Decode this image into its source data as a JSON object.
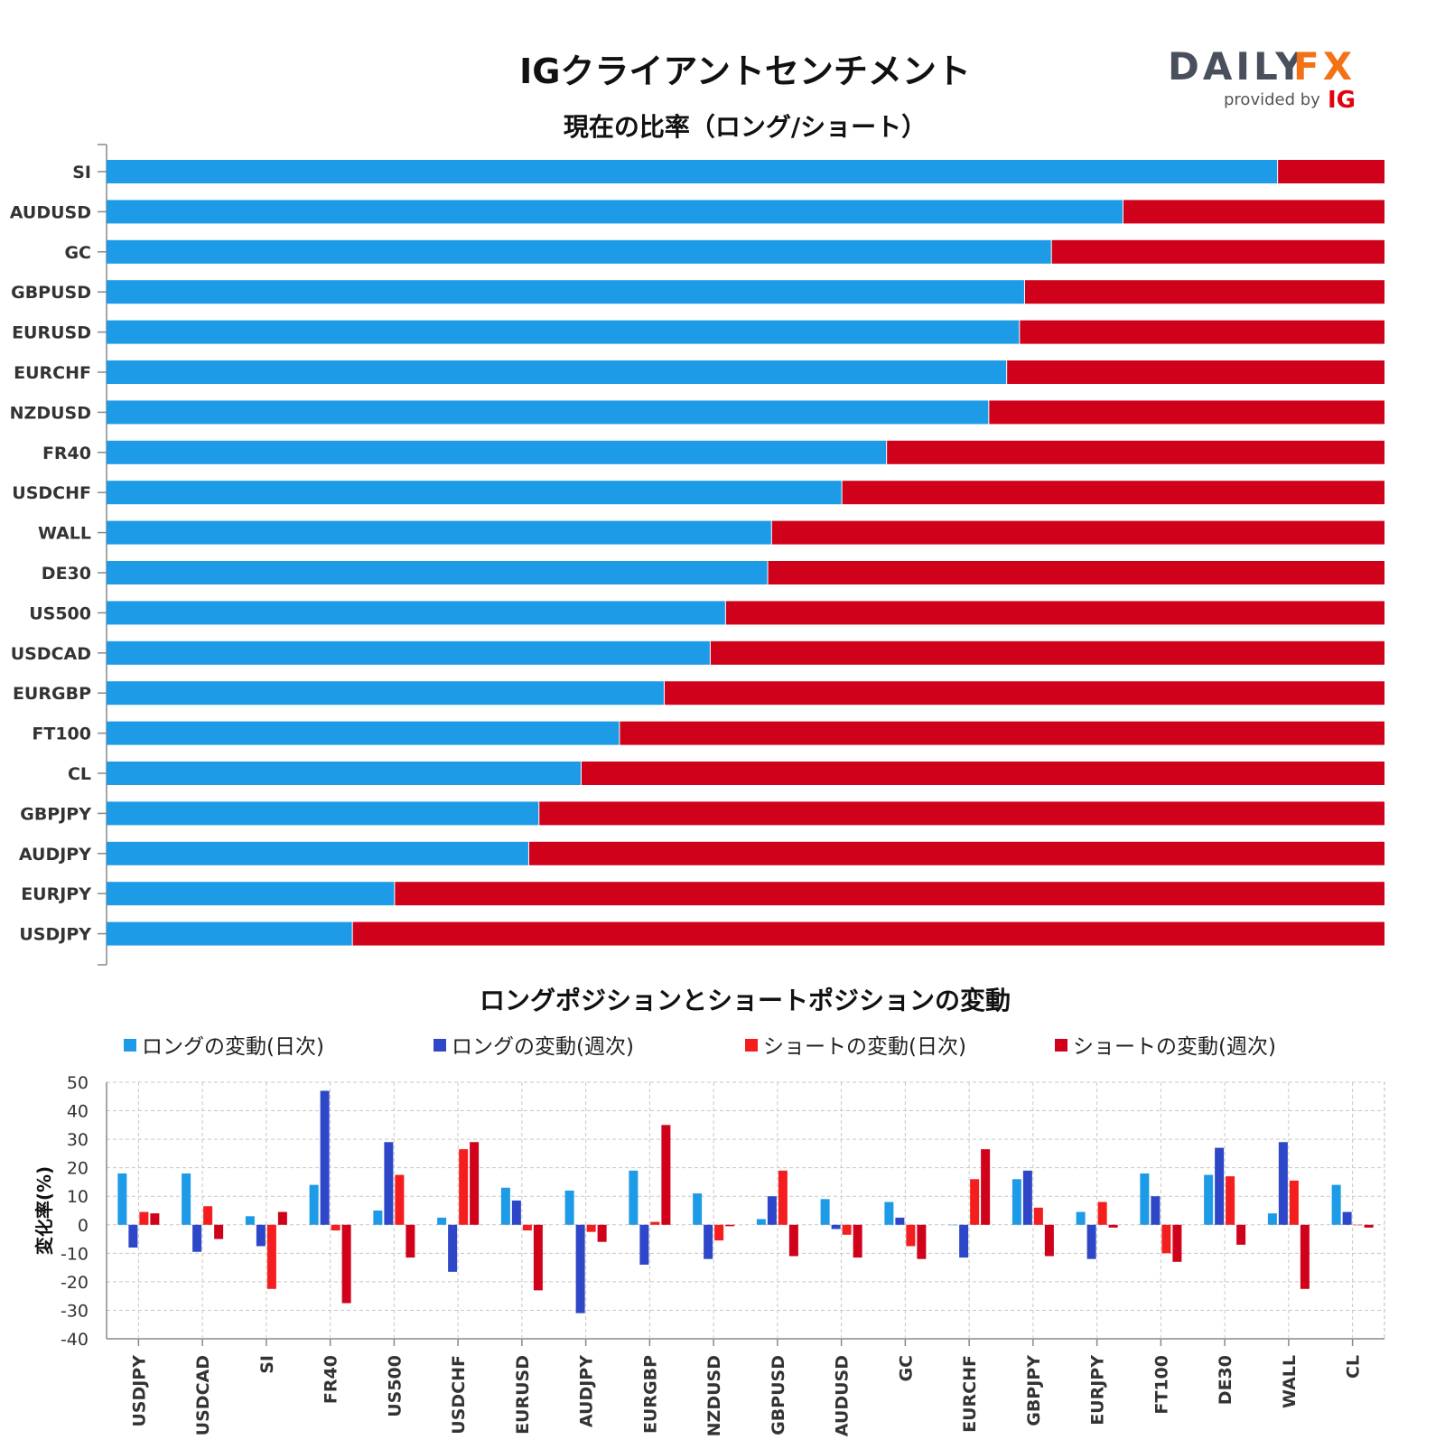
{
  "header": {
    "title": "IGクライアントセンチメント",
    "logo_daily": "DAILY",
    "logo_fx": "FX",
    "logo_provided": "provided by",
    "logo_ig": "IG"
  },
  "colors": {
    "long_daily": "#1e9be6",
    "long_weekly": "#2d47c8",
    "short_daily": "#f51e1e",
    "short_weekly": "#d0021b",
    "ratio_long": "#1e9be6",
    "ratio_short": "#d0021b"
  },
  "chart_data": [
    {
      "type": "bar",
      "orientation": "horizontal",
      "stacked": true,
      "title": "現在の比率（ロング/ショート）",
      "categories": [
        "SI",
        "AUDUSD",
        "GC",
        "GBPUSD",
        "EURUSD",
        "EURCHF",
        "NZDUSD",
        "FR40",
        "USDCHF",
        "WALL",
        "DE30",
        "US500",
        "USDCAD",
        "EURGBP",
        "FT100",
        "CL",
        "GBPJPY",
        "AUDJPY",
        "EURJPY",
        "USDJPY"
      ],
      "series": [
        {
          "values": [
            91.6,
            79.5,
            73.9,
            71.8,
            71.4,
            70.4,
            69.0,
            61.0,
            57.5,
            52.0,
            51.7,
            48.4,
            47.2,
            43.6,
            40.1,
            37.1,
            33.8,
            33.0,
            22.5,
            19.2
          ]
        },
        {
          "values": [
            8.4,
            20.5,
            26.1,
            28.2,
            28.6,
            29.6,
            31.0,
            39.0,
            42.5,
            48.0,
            48.3,
            51.6,
            52.8,
            56.4,
            59.9,
            62.9,
            66.2,
            67.0,
            77.5,
            80.8
          ]
        }
      ],
      "xlim": [
        0,
        100
      ]
    },
    {
      "type": "bar",
      "title": "ロングポジションとショートポジションの変動",
      "ylabel": "変化率(%)",
      "ylim": [
        -40,
        50
      ],
      "yticks": [
        "50",
        "40",
        "30",
        "20",
        "10",
        "0",
        "-10",
        "-20",
        "-30",
        "-40"
      ],
      "grid": true,
      "legend_position": "top",
      "categories": [
        "USDJPY",
        "USDCAD",
        "SI",
        "FR40",
        "US500",
        "USDCHF",
        "EURUSD",
        "AUDJPY",
        "EURGBP",
        "NZDUSD",
        "GBPUSD",
        "AUDUSD",
        "GC",
        "EURCHF",
        "GBPJPY",
        "EURJPY",
        "FT100",
        "DE30",
        "WALL",
        "CL"
      ],
      "series": [
        {
          "name": "ロングの変動(日次)",
          "values": [
            18,
            18,
            3,
            14,
            5,
            2.5,
            13,
            12,
            19,
            11,
            2,
            9,
            8,
            0,
            16,
            4.5,
            18,
            17.5,
            4,
            14
          ]
        },
        {
          "name": "ロングの変動(週次)",
          "values": [
            -8,
            -9.5,
            -7.5,
            47,
            29,
            -16.5,
            8.5,
            -31,
            -14,
            -12,
            10,
            -1.5,
            2.5,
            -11.5,
            19,
            -12,
            10,
            27,
            29,
            4.5
          ]
        },
        {
          "name": "ショートの変動(日次)",
          "values": [
            4.5,
            6.5,
            -22.5,
            -2,
            17.5,
            26.5,
            -2,
            -2.5,
            1,
            -5.5,
            19,
            -3.5,
            -7.5,
            16,
            6,
            8,
            -10,
            17,
            15.5,
            0
          ]
        },
        {
          "name": "ショートの変動(週次)",
          "values": [
            4,
            -5,
            4.5,
            -27.5,
            -11.5,
            29,
            -23,
            -6,
            35,
            -0.5,
            -11,
            -11.5,
            -12,
            26.5,
            -11,
            -1,
            -13,
            -7,
            -22.5,
            -1
          ]
        }
      ]
    }
  ]
}
